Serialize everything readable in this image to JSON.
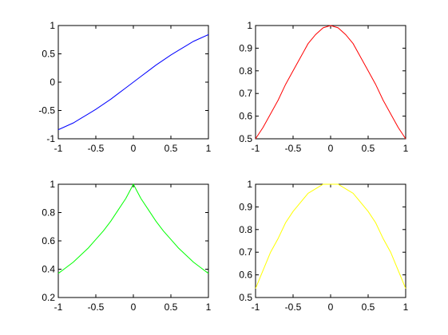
{
  "chart_data": [
    {
      "type": "line",
      "x": [
        -1,
        -0.9,
        -0.8,
        -0.7,
        -0.6,
        -0.5,
        -0.4,
        -0.3,
        -0.2,
        -0.1,
        0,
        0.1,
        0.2,
        0.3,
        0.4,
        0.5,
        0.6,
        0.7,
        0.8,
        0.9,
        1
      ],
      "series": [
        {
          "color": "#0000ff",
          "values": [
            -0.84,
            -0.78,
            -0.72,
            -0.64,
            -0.56,
            -0.48,
            -0.39,
            -0.3,
            -0.2,
            -0.1,
            0,
            0.1,
            0.2,
            0.3,
            0.39,
            0.48,
            0.56,
            0.64,
            0.72,
            0.78,
            0.84
          ]
        }
      ],
      "xlim": [
        -1,
        1
      ],
      "xticks": [
        -1,
        -0.5,
        0,
        0.5,
        1
      ],
      "ylim": [
        -1,
        1
      ],
      "yticks": [
        -1,
        -0.5,
        0,
        0.5,
        1
      ]
    },
    {
      "type": "line",
      "x": [
        -1,
        -0.9,
        -0.8,
        -0.7,
        -0.6,
        -0.5,
        -0.4,
        -0.3,
        -0.2,
        -0.1,
        0,
        0.1,
        0.2,
        0.3,
        0.4,
        0.5,
        0.6,
        0.7,
        0.8,
        0.9,
        1
      ],
      "series": [
        {
          "color": "#ff0000",
          "values": [
            0.5,
            0.55,
            0.61,
            0.67,
            0.74,
            0.8,
            0.86,
            0.92,
            0.96,
            0.99,
            1,
            0.99,
            0.96,
            0.92,
            0.86,
            0.8,
            0.74,
            0.67,
            0.61,
            0.55,
            0.5
          ]
        }
      ],
      "xlim": [
        -1,
        1
      ],
      "xticks": [
        -1,
        -0.5,
        0,
        0.5,
        1
      ],
      "ylim": [
        0.5,
        1
      ],
      "yticks": [
        0.5,
        0.6,
        0.7,
        0.8,
        0.9,
        1
      ]
    },
    {
      "type": "line",
      "x": [
        -1,
        -0.9,
        -0.8,
        -0.7,
        -0.6,
        -0.5,
        -0.4,
        -0.3,
        -0.2,
        -0.1,
        0,
        0.1,
        0.2,
        0.3,
        0.4,
        0.5,
        0.6,
        0.7,
        0.8,
        0.9,
        1
      ],
      "series": [
        {
          "color": "#00ff00",
          "values": [
            0.37,
            0.41,
            0.45,
            0.5,
            0.55,
            0.61,
            0.67,
            0.74,
            0.82,
            0.9,
            1,
            0.9,
            0.82,
            0.74,
            0.67,
            0.61,
            0.55,
            0.5,
            0.45,
            0.41,
            0.37
          ]
        }
      ],
      "xlim": [
        -1,
        1
      ],
      "xticks": [
        -1,
        -0.5,
        0,
        0.5,
        1
      ],
      "ylim": [
        0.2,
        1
      ],
      "yticks": [
        0.2,
        0.4,
        0.6,
        0.8,
        1
      ]
    },
    {
      "type": "line",
      "x": [
        -1,
        -0.9,
        -0.8,
        -0.7,
        -0.6,
        -0.5,
        -0.4,
        -0.3,
        -0.2,
        -0.1,
        0,
        0.1,
        0.2,
        0.3,
        0.4,
        0.5,
        0.6,
        0.7,
        0.8,
        0.9,
        1
      ],
      "series": [
        {
          "color": "#ffff00",
          "values": [
            0.54,
            0.62,
            0.7,
            0.76,
            0.83,
            0.88,
            0.92,
            0.96,
            0.98,
            1,
            1,
            1,
            0.98,
            0.96,
            0.92,
            0.88,
            0.83,
            0.76,
            0.7,
            0.62,
            0.54
          ]
        }
      ],
      "xlim": [
        -1,
        1
      ],
      "xticks": [
        -1,
        -0.5,
        0,
        0.5,
        1
      ],
      "ylim": [
        0.5,
        1
      ],
      "yticks": [
        0.5,
        0.6,
        0.7,
        0.8,
        0.9,
        1
      ]
    }
  ]
}
